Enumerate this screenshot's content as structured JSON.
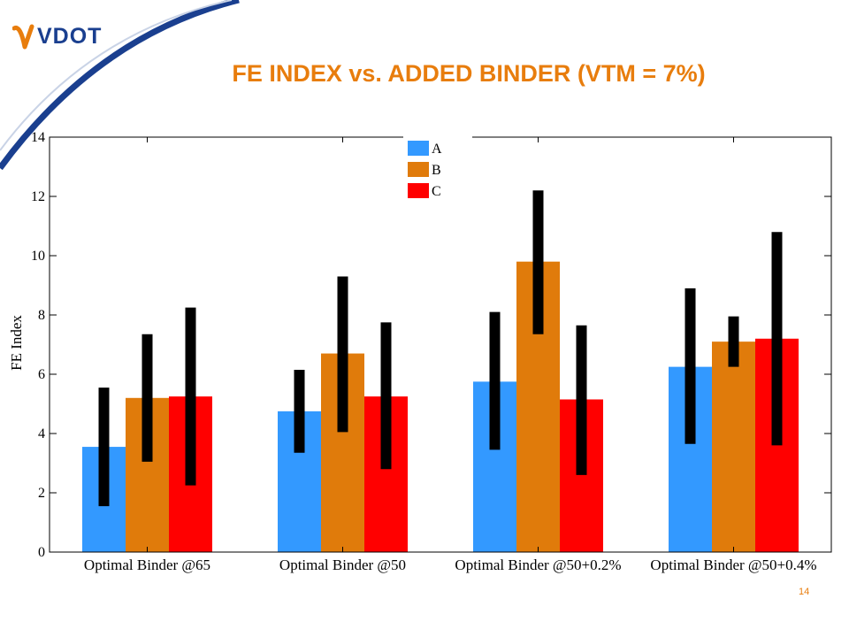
{
  "logo": {
    "text": "VDOT"
  },
  "slide": {
    "title": "FE INDEX vs. ADDED BINDER (VTM = 7%)",
    "page_number": "14",
    "accent_color": "#e87d0d",
    "brand_color": "#1a3f8f"
  },
  "chart_data": {
    "type": "bar",
    "title": "",
    "xlabel": "",
    "ylabel": "FE Index",
    "ylim": [
      0,
      14
    ],
    "yticks": [
      0,
      2,
      4,
      6,
      8,
      10,
      12,
      14
    ],
    "categories": [
      "Optimal Binder @65",
      "Optimal Binder @50",
      "Optimal Binder @50+0.2%",
      "Optimal Binder @50+0.4%"
    ],
    "legend_position": "top-center",
    "series": [
      {
        "name": "A",
        "color": "#3399ff",
        "values": [
          3.55,
          4.75,
          5.75,
          6.25
        ],
        "error_low": [
          1.55,
          3.35,
          3.45,
          3.65
        ],
        "error_high": [
          5.55,
          6.15,
          8.1,
          8.9
        ]
      },
      {
        "name": "B",
        "color": "#e07b0b",
        "values": [
          5.2,
          6.7,
          9.8,
          7.1
        ],
        "error_low": [
          3.05,
          4.05,
          7.35,
          6.25
        ],
        "error_high": [
          7.35,
          9.3,
          12.2,
          7.95
        ]
      },
      {
        "name": "C",
        "color": "#ff0000",
        "values": [
          5.25,
          5.25,
          5.15,
          7.2
        ],
        "error_low": [
          2.25,
          2.8,
          2.6,
          3.6
        ],
        "error_high": [
          8.25,
          7.75,
          7.65,
          10.8
        ]
      }
    ]
  }
}
